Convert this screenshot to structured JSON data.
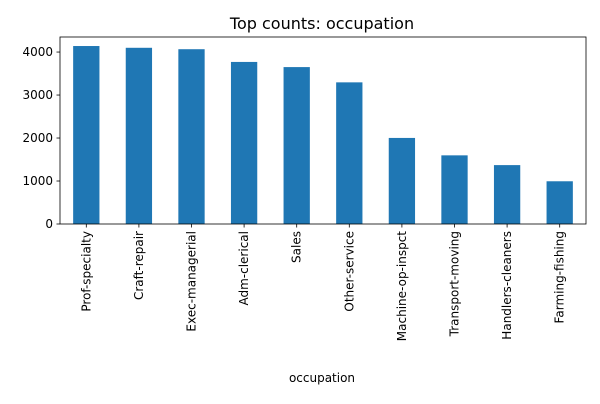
{
  "chart_data": {
    "type": "bar",
    "title": "Top counts: occupation",
    "xlabel": "occupation",
    "ylabel": "",
    "categories": [
      "Prof-specialty",
      "Craft-repair",
      "Exec-managerial",
      "Adm-clerical",
      "Sales",
      "Other-service",
      "Machine-op-inspct",
      "Transport-moving",
      "Handlers-cleaners",
      "Farming-fishing"
    ],
    "values": [
      4140,
      4099,
      4066,
      3770,
      3650,
      3295,
      2002,
      1597,
      1370,
      994
    ],
    "ylim": [
      0,
      4350
    ],
    "yticks": [
      0,
      1000,
      2000,
      3000,
      4000
    ],
    "grid": false,
    "legend": "none",
    "bar_color": "#1f77b4"
  }
}
